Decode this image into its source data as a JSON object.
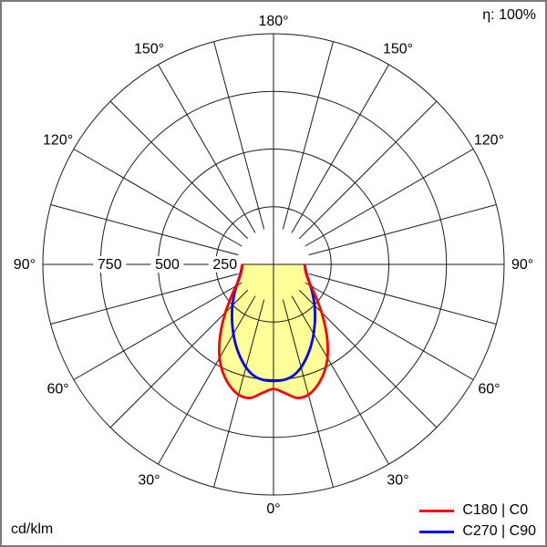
{
  "header": {
    "efficiency": "η: 100%"
  },
  "footer": {
    "unit": "cd/klm"
  },
  "chart_data": {
    "type": "line",
    "coordinate_system": "polar",
    "description": "Luminous intensity distribution curve (polar photometric diagram), 0° at nadir (bottom), values in cd/klm",
    "units": "cd/klm",
    "grid": true,
    "legend_position": "bottom-right",
    "angle_grid_step_deg": 15,
    "angle_ticks": [
      {
        "deg": 0,
        "label": "0°"
      },
      {
        "deg": 30,
        "label": "30°"
      },
      {
        "deg": 60,
        "label": "60°"
      },
      {
        "deg": 90,
        "label": "90°"
      },
      {
        "deg": 120,
        "label": "120°"
      },
      {
        "deg": 150,
        "label": "150°"
      },
      {
        "deg": 180,
        "label": "180°"
      }
    ],
    "radial_ticks": [
      {
        "value": 250,
        "label": "250"
      },
      {
        "value": 500,
        "label": "500"
      },
      {
        "value": 750,
        "label": "750"
      }
    ],
    "radial_max": 1000,
    "gamma_deg": [
      0,
      5,
      10,
      15,
      20,
      25,
      30,
      35,
      40,
      45,
      50,
      55,
      60,
      65,
      70,
      75,
      80,
      85,
      90
    ],
    "series": [
      {
        "name": "C180 | C0",
        "color": "#ff0000",
        "fill_color": "#ffff99",
        "values": [
          540,
          560,
          588,
          585,
          558,
          518,
          468,
          408,
          348,
          295,
          250,
          215,
          188,
          168,
          155,
          146,
          140,
          137,
          135
        ]
      },
      {
        "name": "C270 | C90",
        "color": "#0000ff",
        "fill_color": "none",
        "values": [
          505,
          503,
          490,
          462,
          425,
          386,
          348,
          312,
          280,
          252,
          226,
          204,
          185,
          169,
          157,
          148,
          142,
          138,
          135
        ]
      }
    ]
  }
}
